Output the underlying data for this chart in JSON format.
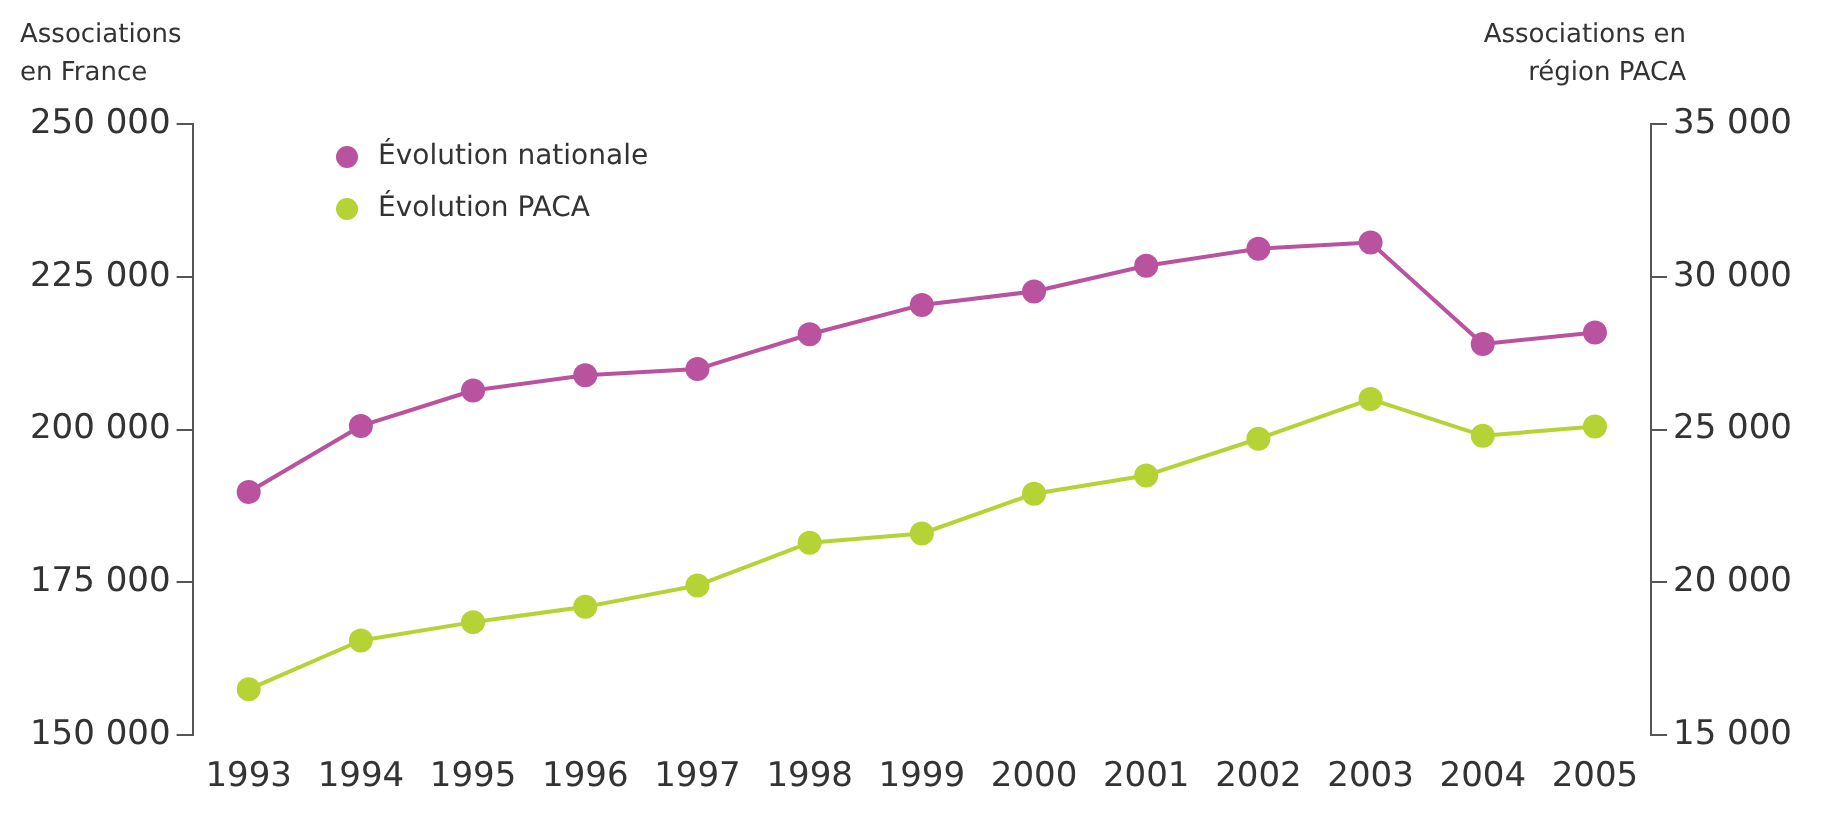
{
  "chart_data": {
    "type": "line",
    "ylabel": "Associations\nen France",
    "y2label": "Associations en\nrégion PACA",
    "categories": [
      "1993",
      "1994",
      "1995",
      "1996",
      "1997",
      "1998",
      "1999",
      "2000",
      "2001",
      "2002",
      "2003",
      "2004",
      "2005"
    ],
    "series": [
      {
        "name": "Évolution nationale",
        "color": "#b9529f",
        "values": [
          189800,
          200600,
          206400,
          208900,
          209900,
          215600,
          220400,
          222600,
          226800,
          229600,
          230600,
          214000,
          215900
        ]
      },
      {
        "name": "Évolution PACA",
        "color": "#b5d334",
        "axis": "y2",
        "values": [
          16500,
          18100,
          18700,
          19200,
          19900,
          21300,
          21600,
          22900,
          23500,
          24700,
          26000,
          24800,
          25100
        ]
      }
    ],
    "ylim": [
      150000,
      250000
    ],
    "yticks": [
      {
        "value": 150000,
        "label": "150 000"
      },
      {
        "value": 175000,
        "label": "175 000"
      },
      {
        "value": 200000,
        "label": "200 000"
      },
      {
        "value": 225000,
        "label": "225 000"
      },
      {
        "value": 250000,
        "label": "250 000"
      }
    ],
    "y2lim": [
      15000,
      35000
    ],
    "y2ticks": [
      {
        "value": 15000,
        "label": "15 000"
      },
      {
        "value": 20000,
        "label": "20 000"
      },
      {
        "value": 25000,
        "label": "25 000"
      },
      {
        "value": 30000,
        "label": "30 000"
      },
      {
        "value": 35000,
        "label": "35 000"
      }
    ],
    "marker": "circle",
    "line_style": "solid",
    "legend": "top left"
  }
}
